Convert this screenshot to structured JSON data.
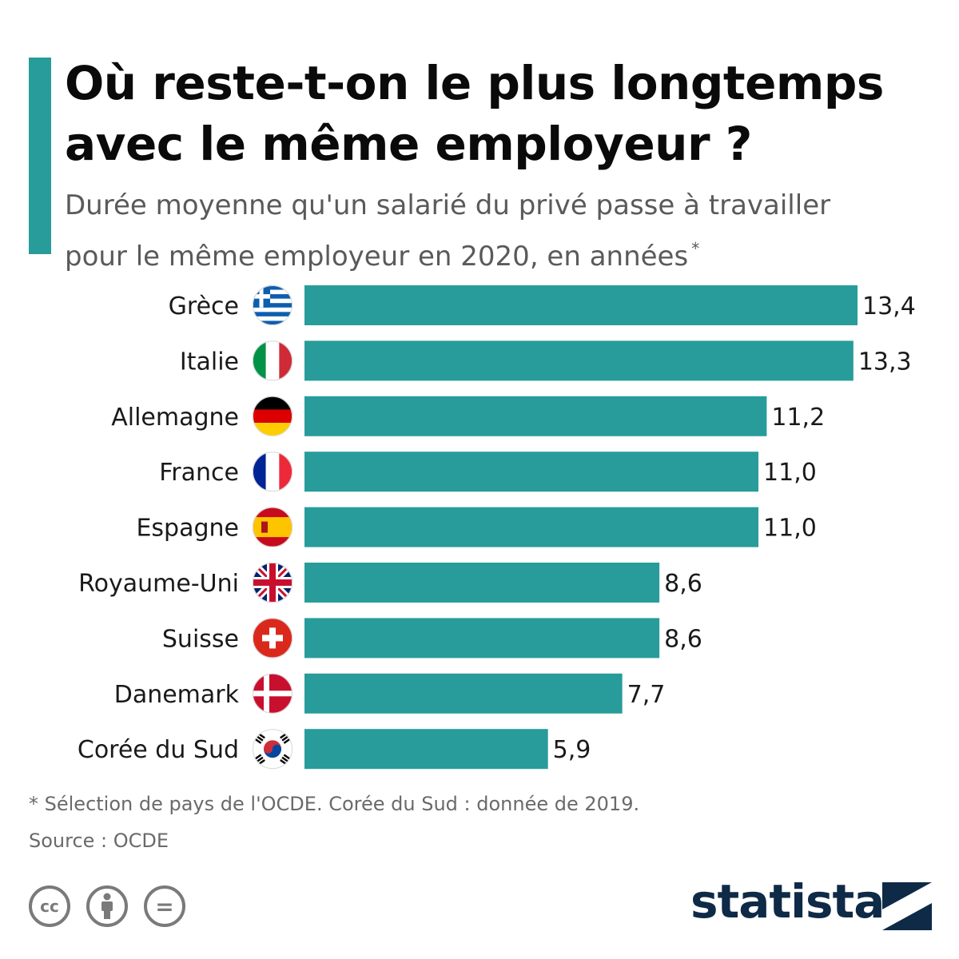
{
  "page": {
    "title_line1": "Où reste-t-on le plus longtemps",
    "title_line2": "avec le même employeur ?",
    "subtitle_line1": "Durée moyenne qu'un salarié du privé passe à travailler",
    "subtitle_line2": "pour le même employeur en 2020, en années",
    "subtitle_marker": "*",
    "footnote": "* Sélection de pays de l'OCDE. Corée du Sud : donnée de 2019.",
    "source": "Source : OCDE",
    "brand": "statista",
    "license_icons": [
      "creative-commons-icon",
      "attribution-person-icon",
      "no-derivatives-equals-icon"
    ],
    "license_cc_text": "cc",
    "license_nd_text": "="
  },
  "chart_data": {
    "type": "bar",
    "orientation": "horizontal",
    "title": "Où reste-t-on le plus longtemps avec le même employeur ?",
    "subtitle": "Durée moyenne qu'un salarié du privé passe à travailler pour le même employeur en 2020, en années *",
    "categories": [
      "Grèce",
      "Italie",
      "Allemagne",
      "France",
      "Espagne",
      "Royaume-Uni",
      "Suisse",
      "Danemark",
      "Corée du Sud"
    ],
    "values": [
      13.4,
      13.3,
      11.2,
      11.0,
      11.0,
      8.6,
      8.6,
      7.7,
      5.9
    ],
    "value_labels": [
      "13,4",
      "13,3",
      "11,2",
      "11,0",
      "11,0",
      "8,6",
      "8,6",
      "7,7",
      "5,9"
    ],
    "flags": [
      "greece-flag-icon",
      "italy-flag-icon",
      "germany-flag-icon",
      "france-flag-icon",
      "spain-flag-icon",
      "united-kingdom-flag-icon",
      "switzerland-flag-icon",
      "denmark-flag-icon",
      "south-korea-flag-icon"
    ],
    "xlim": [
      0,
      13.4
    ],
    "grid": false,
    "legend": false,
    "colors": {
      "bar": "#279c9b",
      "accent": "#279c9b",
      "brand": "#0e2a47"
    }
  }
}
